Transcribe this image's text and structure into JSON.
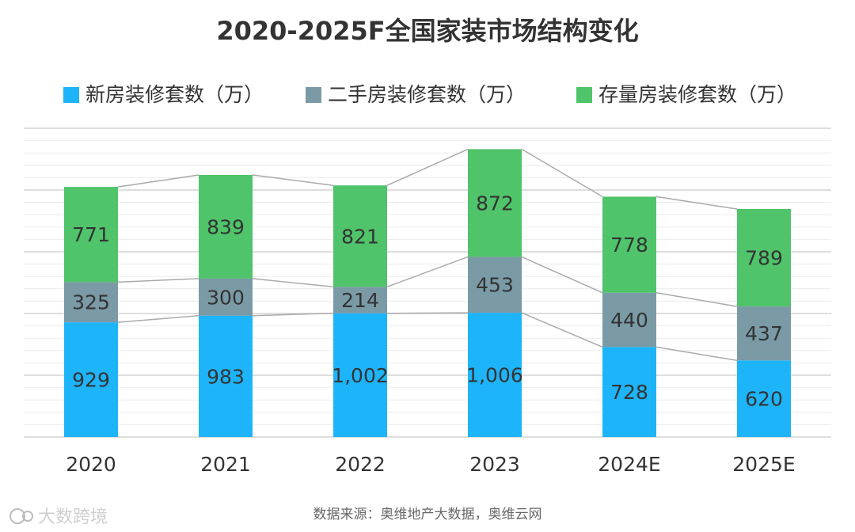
{
  "chart_data": {
    "type": "bar",
    "stacked": true,
    "title": "2020-2025F全国家装市场结构变化",
    "categories": [
      "2020",
      "2021",
      "2022",
      "2023",
      "2024E",
      "2025E"
    ],
    "series": [
      {
        "name": "新房装修套数（万）",
        "color": "#1eb4fa",
        "values": [
          929,
          983,
          1002,
          1006,
          728,
          620
        ],
        "labels": [
          "929",
          "983",
          "1,002",
          "1,006",
          "728",
          "620"
        ]
      },
      {
        "name": "二手房装修套数（万）",
        "color": "#7a9aa6",
        "values": [
          325,
          300,
          214,
          453,
          440,
          437
        ],
        "labels": [
          "325",
          "300",
          "214",
          "453",
          "440",
          "437"
        ]
      },
      {
        "name": "存量房装修套数（万）",
        "color": "#4fc46a",
        "values": [
          771,
          839,
          821,
          872,
          778,
          789
        ],
        "labels": [
          "771",
          "839",
          "821",
          "872",
          "778",
          "789"
        ]
      }
    ],
    "legend_position": "top",
    "grid": true,
    "ylim": [
      0,
      2500
    ],
    "source": "数据来源：奥维地产大数据，奥维云网"
  },
  "watermark": "大数跨境"
}
